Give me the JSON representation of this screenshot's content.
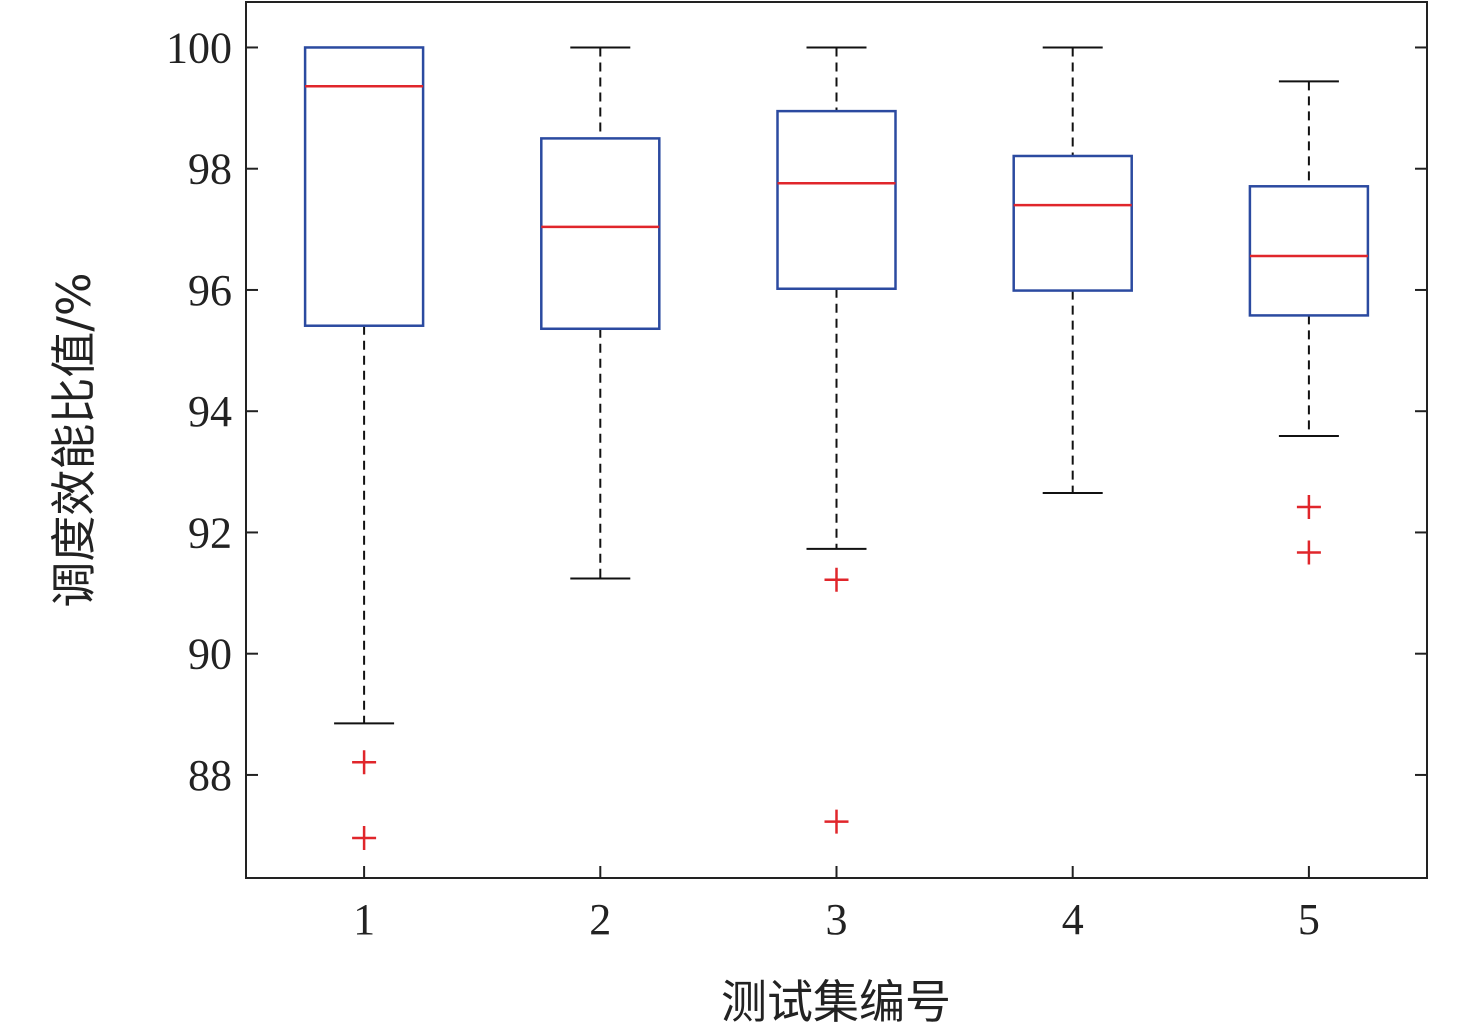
{
  "chart_data": {
    "type": "boxplot",
    "title": "",
    "xlabel": "测试集编号",
    "ylabel": "调度效能比值/%",
    "categories": [
      "1",
      "2",
      "3",
      "4",
      "5"
    ],
    "xlim": [
      0.5,
      5.5
    ],
    "ylim": [
      86.3,
      100.75
    ],
    "yticks": [
      88,
      90,
      92,
      94,
      96,
      98,
      100
    ],
    "grid": false,
    "colors": {
      "box": "#2b4aa0",
      "median": "#e0262b",
      "whisker": "#111111",
      "outlier": "#e0262b"
    },
    "boxes": [
      {
        "category": "1",
        "whisker_low": 88.85,
        "q1": 95.41,
        "median": 99.36,
        "q3": 100.0,
        "whisker_high": 100.0,
        "outliers": [
          88.21,
          86.96
        ]
      },
      {
        "category": "2",
        "whisker_low": 91.24,
        "q1": 95.36,
        "median": 97.04,
        "q3": 98.5,
        "whisker_high": 100.0,
        "outliers": []
      },
      {
        "category": "3",
        "whisker_low": 91.73,
        "q1": 96.02,
        "median": 97.76,
        "q3": 98.95,
        "whisker_high": 100.0,
        "outliers": [
          91.22,
          87.23
        ]
      },
      {
        "category": "4",
        "whisker_low": 92.65,
        "q1": 95.99,
        "median": 97.4,
        "q3": 98.21,
        "whisker_high": 100.0,
        "outliers": []
      },
      {
        "category": "5",
        "whisker_low": 93.59,
        "q1": 95.58,
        "median": 96.56,
        "q3": 97.71,
        "whisker_high": 99.44,
        "outliers": [
          92.42,
          91.67
        ]
      }
    ]
  }
}
